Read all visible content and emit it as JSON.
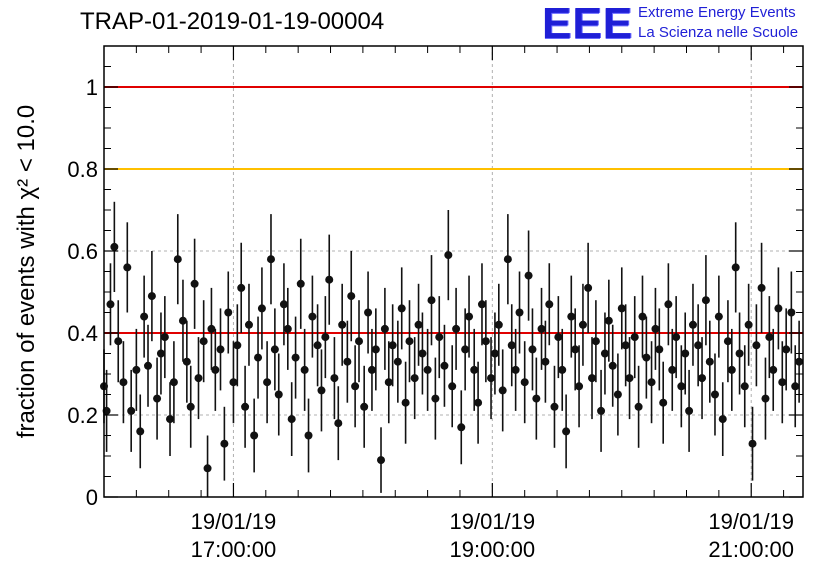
{
  "title": "TRAP-01-2019-01-19-00004",
  "logo": {
    "mark": "EEE",
    "line1": "Extreme Energy Events",
    "line2": "La Scienza nelle Scuole"
  },
  "chart_data": {
    "type": "scatter",
    "title": "TRAP-01-2019-01-19-00004",
    "ylabel": "fraction of events with χ² < 10.0",
    "ylim": [
      0,
      1.1
    ],
    "xlim_hours": [
      16.0,
      21.4
    ],
    "grid": true,
    "y_ticks": [
      "0",
      "0.2",
      "0.4",
      "0.6",
      "0.8",
      "1"
    ],
    "y_tick_values": [
      0,
      0.2,
      0.4,
      0.6,
      0.8,
      1.0
    ],
    "x_ticks": [
      {
        "date": "19/01/19",
        "time": "17:00:00"
      },
      {
        "date": "19/01/19",
        "time": "19:00:00"
      },
      {
        "date": "19/01/19",
        "time": "21:00:00"
      }
    ],
    "reference_lines": [
      {
        "y": 1.0,
        "color": "#e00000"
      },
      {
        "y": 0.8,
        "color": "#ffc000"
      },
      {
        "y": 0.4,
        "color": "#e00000"
      }
    ],
    "marker_color": "#111111",
    "x_hours": [
      16.0,
      16.02,
      16.05,
      16.08,
      16.11,
      16.15,
      16.18,
      16.21,
      16.25,
      16.28,
      16.31,
      16.34,
      16.37,
      16.41,
      16.44,
      16.47,
      16.51,
      16.54,
      16.57,
      16.61,
      16.64,
      16.67,
      16.7,
      16.73,
      16.77,
      16.8,
      16.83,
      16.86,
      16.9,
      16.93,
      16.96,
      17.0,
      17.03,
      17.06,
      17.09,
      17.12,
      17.16,
      17.19,
      17.22,
      17.26,
      17.29,
      17.32,
      17.35,
      17.39,
      17.42,
      17.45,
      17.48,
      17.52,
      17.55,
      17.58,
      17.61,
      17.65,
      17.68,
      17.71,
      17.74,
      17.78,
      17.81,
      17.84,
      17.88,
      17.91,
      17.94,
      17.97,
      18.01,
      18.04,
      18.07,
      18.1,
      18.14,
      18.17,
      18.2,
      18.23,
      18.27,
      18.3,
      18.33,
      18.36,
      18.4,
      18.43,
      18.46,
      18.5,
      18.53,
      18.56,
      18.59,
      18.63,
      18.66,
      18.69,
      18.72,
      18.76,
      18.79,
      18.82,
      18.86,
      18.89,
      18.92,
      18.95,
      18.99,
      19.02,
      19.05,
      19.08,
      19.12,
      19.15,
      19.18,
      19.21,
      19.25,
      19.28,
      19.31,
      19.34,
      19.38,
      19.41,
      19.44,
      19.48,
      19.51,
      19.54,
      19.57,
      19.61,
      19.64,
      19.67,
      19.7,
      19.74,
      19.77,
      19.8,
      19.84,
      19.87,
      19.9,
      19.93,
      19.97,
      20.0,
      20.03,
      20.06,
      20.1,
      20.13,
      20.16,
      20.19,
      20.23,
      20.26,
      20.29,
      20.32,
      20.36,
      20.39,
      20.42,
      20.46,
      20.49,
      20.52,
      20.55,
      20.59,
      20.62,
      20.65,
      20.68,
      20.72,
      20.75,
      20.78,
      20.82,
      20.85,
      20.88,
      20.91,
      20.95,
      20.98,
      21.01,
      21.04,
      21.08,
      21.11,
      21.14,
      21.17,
      21.21,
      21.24,
      21.27,
      21.31,
      21.34,
      21.37
    ],
    "values": [
      0.27,
      0.21,
      0.47,
      0.61,
      0.38,
      0.28,
      0.56,
      0.21,
      0.31,
      0.16,
      0.44,
      0.32,
      0.49,
      0.24,
      0.35,
      0.39,
      0.19,
      0.28,
      0.58,
      0.43,
      0.33,
      0.22,
      0.52,
      0.29,
      0.38,
      0.07,
      0.41,
      0.31,
      0.36,
      0.13,
      0.45,
      0.28,
      0.37,
      0.51,
      0.22,
      0.42,
      0.15,
      0.34,
      0.46,
      0.28,
      0.58,
      0.36,
      0.25,
      0.47,
      0.41,
      0.19,
      0.34,
      0.52,
      0.31,
      0.15,
      0.44,
      0.37,
      0.26,
      0.39,
      0.53,
      0.29,
      0.18,
      0.42,
      0.33,
      0.49,
      0.27,
      0.38,
      0.22,
      0.45,
      0.31,
      0.36,
      0.09,
      0.41,
      0.28,
      0.37,
      0.33,
      0.46,
      0.23,
      0.38,
      0.29,
      0.42,
      0.35,
      0.31,
      0.48,
      0.24,
      0.39,
      0.32,
      0.59,
      0.27,
      0.41,
      0.17,
      0.36,
      0.44,
      0.31,
      0.23,
      0.47,
      0.38,
      0.29,
      0.35,
      0.42,
      0.26,
      0.58,
      0.37,
      0.31,
      0.45,
      0.28,
      0.54,
      0.36,
      0.24,
      0.41,
      0.33,
      0.47,
      0.22,
      0.39,
      0.31,
      0.16,
      0.44,
      0.36,
      0.27,
      0.42,
      0.51,
      0.29,
      0.38,
      0.21,
      0.35,
      0.43,
      0.32,
      0.25,
      0.46,
      0.37,
      0.29,
      0.39,
      0.22,
      0.44,
      0.34,
      0.28,
      0.41,
      0.36,
      0.23,
      0.47,
      0.31,
      0.39,
      0.27,
      0.35,
      0.21,
      0.42,
      0.37,
      0.29,
      0.48,
      0.33,
      0.25,
      0.44,
      0.19,
      0.38,
      0.31,
      0.56,
      0.35,
      0.27,
      0.42,
      0.13,
      0.37,
      0.51,
      0.24,
      0.39,
      0.31,
      0.46,
      0.28,
      0.36,
      0.45,
      0.27,
      0.33
    ],
    "errors": [
      0.09,
      0.1,
      0.1,
      0.11,
      0.1,
      0.1,
      0.11,
      0.1,
      0.1,
      0.09,
      0.1,
      0.1,
      0.11,
      0.1,
      0.1,
      0.1,
      0.09,
      0.1,
      0.11,
      0.1,
      0.1,
      0.1,
      0.11,
      0.1,
      0.1,
      0.08,
      0.1,
      0.1,
      0.1,
      0.09,
      0.1,
      0.1,
      0.1,
      0.11,
      0.1,
      0.1,
      0.09,
      0.1,
      0.1,
      0.1,
      0.11,
      0.1,
      0.1,
      0.1,
      0.1,
      0.09,
      0.1,
      0.11,
      0.1,
      0.09,
      0.1,
      0.1,
      0.1,
      0.1,
      0.11,
      0.1,
      0.09,
      0.1,
      0.1,
      0.11,
      0.1,
      0.1,
      0.1,
      0.1,
      0.1,
      0.1,
      0.08,
      0.1,
      0.1,
      0.1,
      0.1,
      0.1,
      0.1,
      0.1,
      0.1,
      0.1,
      0.1,
      0.1,
      0.11,
      0.1,
      0.1,
      0.1,
      0.11,
      0.1,
      0.1,
      0.09,
      0.1,
      0.1,
      0.1,
      0.1,
      0.1,
      0.1,
      0.1,
      0.1,
      0.1,
      0.1,
      0.11,
      0.1,
      0.1,
      0.1,
      0.1,
      0.11,
      0.1,
      0.1,
      0.1,
      0.1,
      0.1,
      0.1,
      0.1,
      0.1,
      0.09,
      0.1,
      0.1,
      0.1,
      0.1,
      0.11,
      0.1,
      0.1,
      0.1,
      0.1,
      0.1,
      0.1,
      0.1,
      0.1,
      0.1,
      0.1,
      0.1,
      0.1,
      0.1,
      0.1,
      0.1,
      0.1,
      0.1,
      0.1,
      0.1,
      0.1,
      0.1,
      0.1,
      0.1,
      0.1,
      0.1,
      0.1,
      0.1,
      0.11,
      0.1,
      0.1,
      0.1,
      0.09,
      0.1,
      0.1,
      0.11,
      0.1,
      0.1,
      0.1,
      0.09,
      0.1,
      0.11,
      0.1,
      0.1,
      0.1,
      0.1,
      0.1,
      0.1,
      0.1,
      0.1,
      0.1
    ]
  }
}
